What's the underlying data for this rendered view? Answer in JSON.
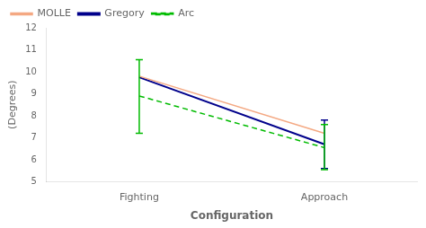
{
  "chart_data": {
    "type": "line",
    "categories": [
      "Fighting",
      "Approach"
    ],
    "series": [
      {
        "name": "MOLLE",
        "color": "#F4A882",
        "line_style": "solid",
        "values": [
          9.8,
          7.2
        ]
      },
      {
        "name": "Gregory",
        "color": "#00008B",
        "line_style": "solid",
        "values": [
          9.75,
          6.7
        ],
        "error_bars": [
          null,
          {
            "minus": 1.1,
            "plus": 1.1
          }
        ]
      },
      {
        "name": "Arc",
        "color": "#00BB00",
        "line_style": "dashed",
        "values": [
          8.9,
          6.55
        ],
        "error_bars": [
          {
            "minus": 1.7,
            "plus": 1.65
          },
          {
            "minus": 1.0,
            "plus": 1.05
          }
        ]
      }
    ],
    "xlabel": "Configuration",
    "ylabel": "(Degrees)",
    "ylim": [
      5,
      12
    ],
    "yticks": [
      5,
      6,
      7,
      8,
      9,
      10,
      11,
      12
    ],
    "grid": false,
    "legend": "upper left"
  }
}
